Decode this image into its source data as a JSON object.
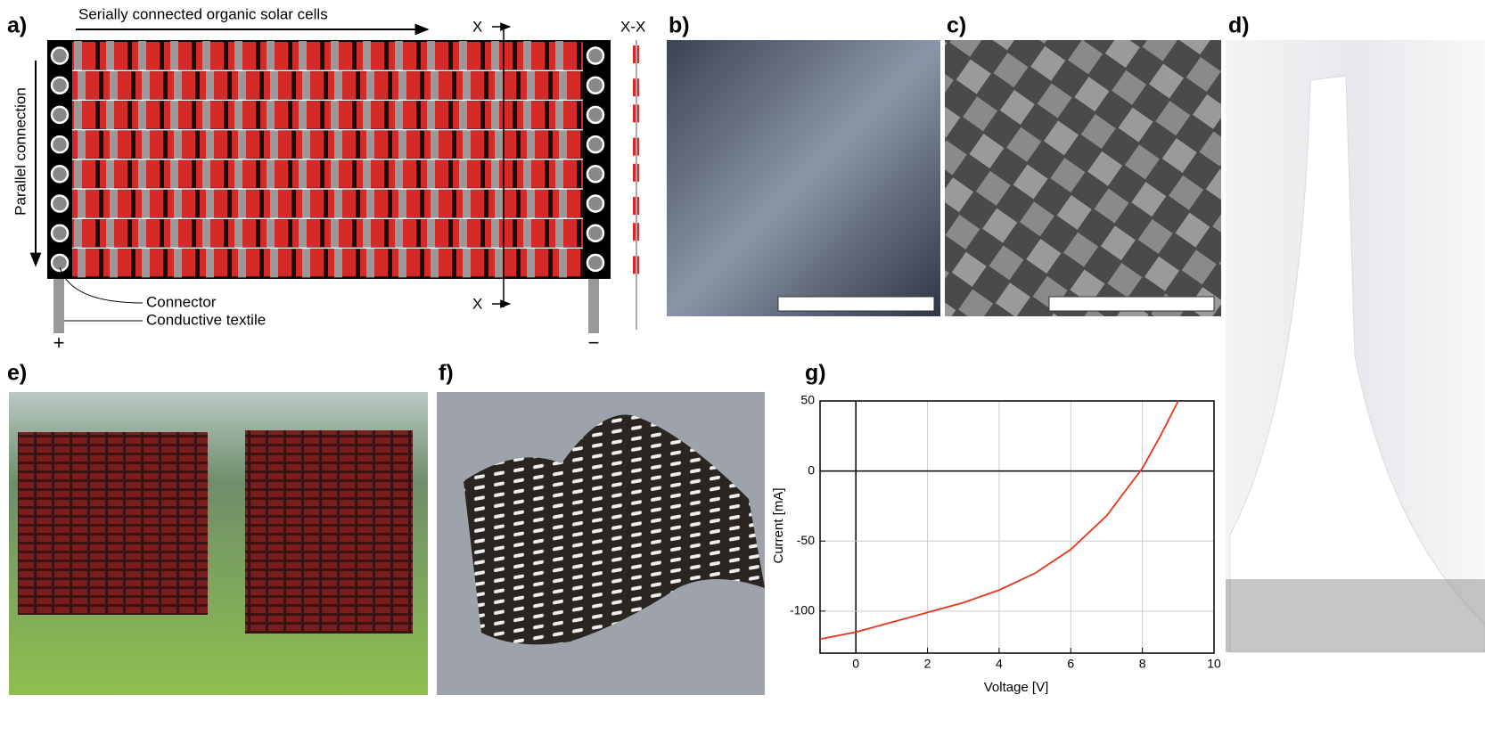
{
  "panels": {
    "a": {
      "label": "a)",
      "top_arrow": "Serially connected organic solar cells",
      "side_arrow": "Parallel connection",
      "section_top": "X",
      "section_bottom": "X",
      "section_label": "X-X",
      "connector": "Connector",
      "textile": "Conductive textile",
      "plus": "+",
      "minus": "−"
    },
    "b": {
      "label": "b)"
    },
    "c": {
      "label": "c)"
    },
    "d": {
      "label": "d)"
    },
    "e": {
      "label": "e)"
    },
    "f": {
      "label": "f)"
    }
  },
  "chart_data": {
    "type": "line",
    "label": "g)",
    "xlabel": "Voltage [V]",
    "ylabel": "Current [mA]",
    "x": [
      -1,
      0,
      1,
      2,
      3,
      4,
      5,
      6,
      7,
      8,
      8.5,
      9
    ],
    "series": [
      {
        "color": "#e8341c",
        "values": [
          -120,
          -115,
          -108,
          -101,
          -94,
          -85,
          -73,
          -56,
          -32,
          2,
          25,
          50
        ]
      }
    ],
    "xlim": [
      -1,
      10
    ],
    "ylim": [
      -130,
      50
    ],
    "xticks": [
      0,
      2,
      4,
      6,
      8,
      10
    ],
    "yticks": [
      -100,
      -50,
      0,
      50
    ],
    "grid": true
  }
}
